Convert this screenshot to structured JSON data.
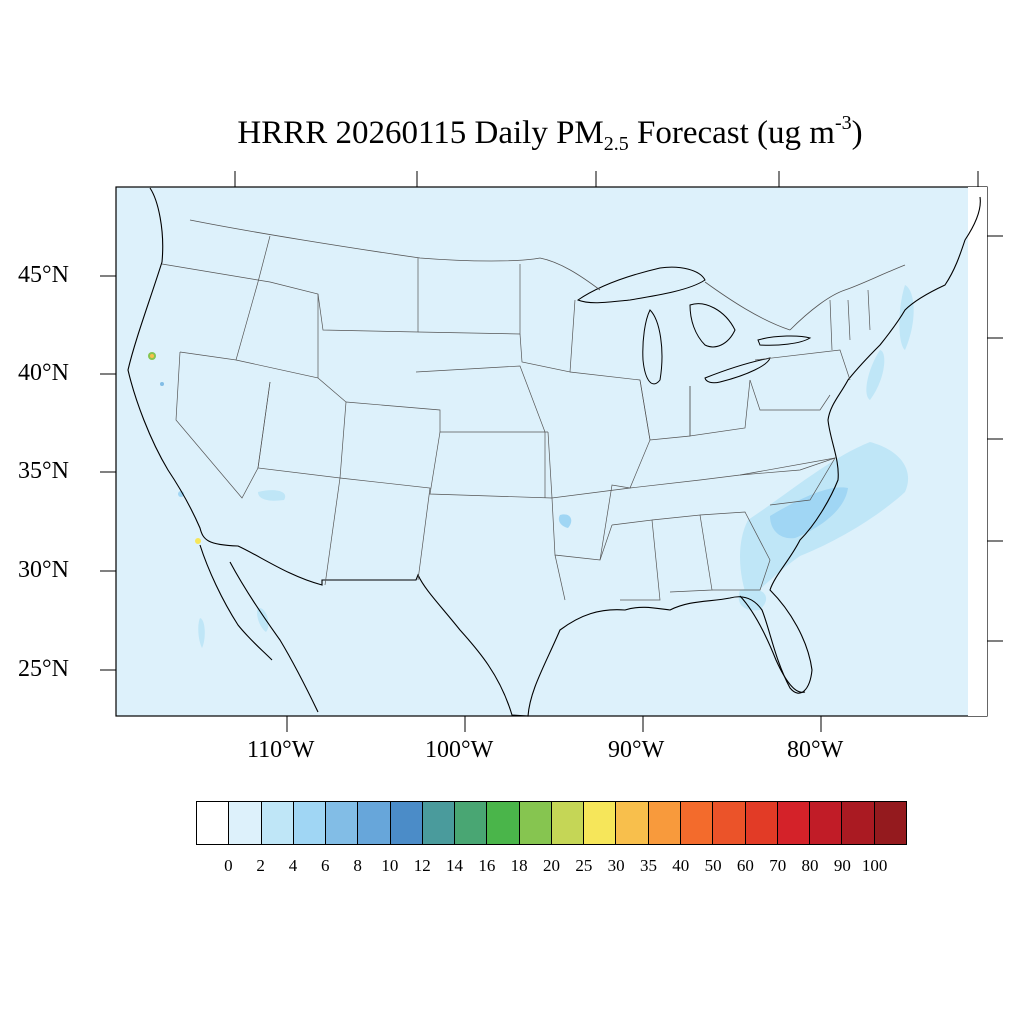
{
  "title": {
    "prefix": "HRRR 20260115 Daily PM",
    "subscript": "2.5",
    "middle": " Forecast (ug m",
    "superscript": "-3",
    "suffix": ")"
  },
  "map": {
    "lat_ticks": [
      "45°N",
      "40°N",
      "35°N",
      "30°N",
      "25°N"
    ],
    "lon_ticks": [
      "110°W",
      "100°W",
      "90°W",
      "80°W"
    ],
    "background_color": "#ddf1fb",
    "land_outline_color": "#000000",
    "boundary_color": "#555555"
  },
  "colorbar": {
    "colors": [
      "#ffffff",
      "#ddf1fb",
      "#bfe6f7",
      "#a0d6f4",
      "#82bde6",
      "#67a6da",
      "#4b8cc8",
      "#4a9b9c",
      "#49a673",
      "#4ab54a",
      "#86c550",
      "#c5d656",
      "#f6e65a",
      "#f8bf4c",
      "#f89a3c",
      "#f36b2c",
      "#eb5329",
      "#e23b26",
      "#d42229",
      "#c11c27",
      "#aa1a22",
      "#941a1e"
    ],
    "labels": [
      "0",
      "2",
      "4",
      "6",
      "8",
      "10",
      "12",
      "14",
      "16",
      "18",
      "20",
      "25",
      "30",
      "35",
      "40",
      "50",
      "60",
      "70",
      "80",
      "90",
      "100"
    ]
  }
}
